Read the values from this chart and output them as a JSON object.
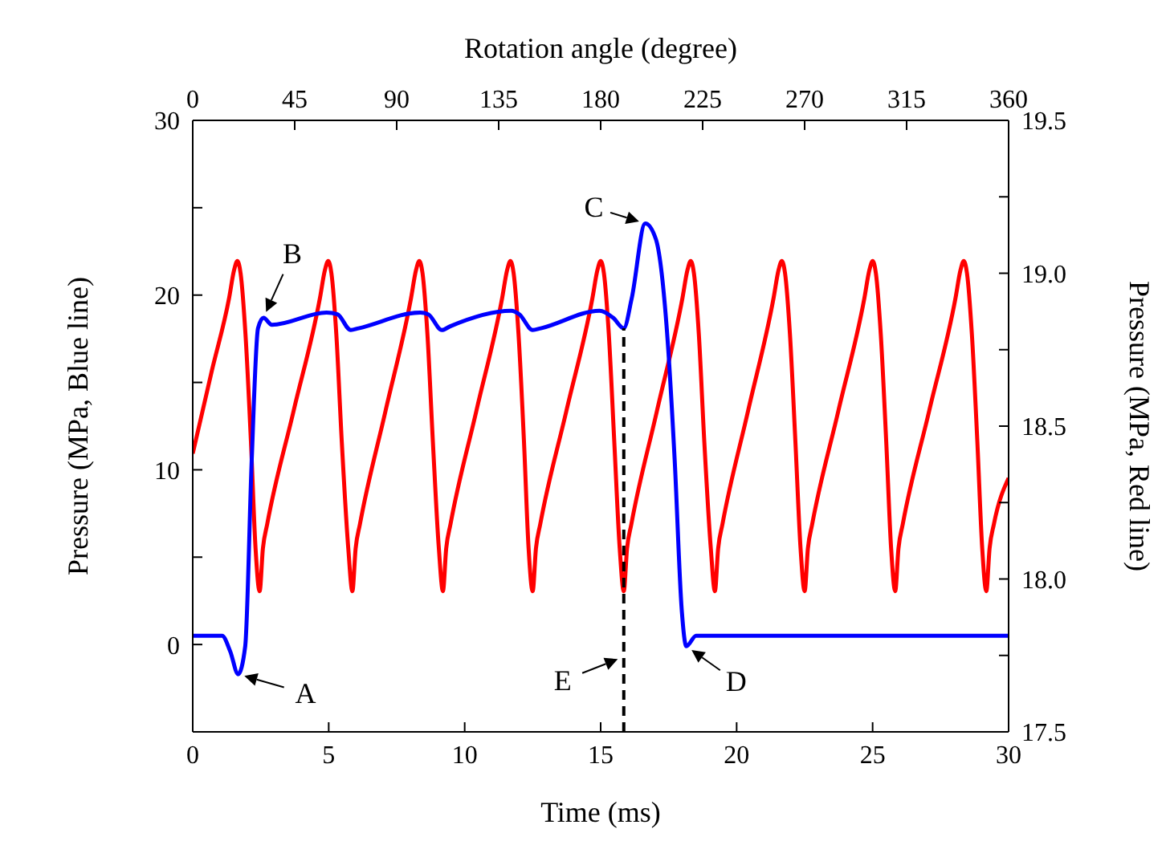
{
  "chart_data": {
    "type": "line",
    "xlabel": "Time (ms)",
    "ylabel": "Pressure (MPa, Blue line)",
    "y2label": "Pressure (MPa, Red line)",
    "x2label": "Rotation angle (degree)",
    "xlim": [
      0,
      30
    ],
    "xticks": [
      0,
      5,
      10,
      15,
      20,
      25,
      30
    ],
    "x2lim": [
      0,
      360
    ],
    "x2ticks": [
      0,
      45,
      90,
      135,
      180,
      225,
      270,
      315,
      360
    ],
    "ylim": [
      -5,
      30
    ],
    "yticks": [
      {
        "value": -5,
        "label": null
      },
      0,
      {
        "value": 5,
        "label": null
      },
      10,
      {
        "value": 15,
        "label": null
      },
      20,
      {
        "value": 25,
        "label": null
      },
      30
    ],
    "y2lim": [
      17.5,
      19.5
    ],
    "y2ticks": [
      17.5,
      {
        "value": 17.75,
        "label": null
      },
      {
        "value": 18,
        "label": "18.0"
      },
      {
        "value": 18.25,
        "label": null
      },
      18.5,
      {
        "value": 18.75,
        "label": null
      },
      {
        "value": 19,
        "label": "19.0"
      },
      {
        "value": 19.25,
        "label": null
      },
      19.5
    ],
    "grid": false,
    "legend": false,
    "marker": "none",
    "series": [
      {
        "color": "#0000ff",
        "x": [
          0,
          1.08,
          1.38,
          1.67,
          1.93,
          2.17,
          2.4,
          2.6,
          2.91,
          4.92,
          5.32,
          5.81,
          6.1,
          8.37,
          8.66,
          9.16,
          9.45,
          11.71,
          12.01,
          12.5,
          12.8,
          14.96,
          15.46,
          15.85,
          16.14,
          16.64,
          17.03,
          17.42,
          17.72,
          17.98,
          18.15,
          18.51,
          30
        ],
        "values": [
          0.5,
          0.5,
          -0.4,
          -1.7,
          -0.1,
          10.6,
          18.1,
          18.7,
          18.3,
          19.0,
          18.9,
          18.0,
          18.1,
          19.0,
          18.9,
          18.0,
          18.2,
          19.1,
          18.9,
          18.0,
          18.1,
          19.1,
          18.7,
          18.1,
          19.8,
          24.1,
          23.2,
          18.3,
          10.6,
          2.0,
          -0.1,
          0.5,
          0.5
        ]
      },
      {
        "color": "#ff0000",
        "axis": "y2",
        "x": [
          0,
          0.7,
          1.34,
          1.52,
          1.64,
          1.76,
          1.94,
          2.14,
          2.31,
          2.46,
          2.58,
          2.74,
          3.71,
          4.68,
          4.86,
          4.98,
          5.1,
          5.28,
          5.48,
          5.72,
          5.87,
          5.99,
          6.15,
          7.09,
          8.03,
          8.21,
          8.33,
          8.45,
          8.63,
          8.83,
          9.05,
          9.2,
          9.32,
          9.48,
          10.43,
          11.38,
          11.56,
          11.68,
          11.8,
          11.98,
          12.18,
          12.35,
          12.5,
          12.62,
          12.78,
          13.74,
          14.7,
          14.88,
          15.0,
          15.12,
          15.3,
          15.5,
          15.7,
          15.85,
          15.97,
          16.13,
          17.07,
          18.01,
          18.19,
          18.31,
          18.43,
          18.61,
          18.81,
          19.05,
          19.2,
          19.32,
          19.48,
          20.42,
          21.36,
          21.54,
          21.66,
          21.78,
          21.96,
          22.16,
          22.35,
          22.5,
          22.62,
          22.78,
          23.74,
          24.7,
          24.88,
          25.0,
          25.12,
          25.3,
          25.5,
          25.68,
          25.83,
          25.95,
          26.11,
          27.08,
          28.05,
          28.23,
          28.35,
          28.47,
          28.65,
          28.85,
          29.03,
          29.18,
          29.3,
          29.46,
          30
        ],
        "values": [
          18.41,
          18.68,
          18.92,
          19.01,
          19.04,
          19.0,
          18.8,
          18.45,
          18.1,
          17.96,
          18.1,
          18.18,
          18.55,
          18.92,
          19.01,
          19.04,
          19.0,
          18.8,
          18.45,
          18.1,
          17.96,
          18.1,
          18.18,
          18.55,
          18.92,
          19.01,
          19.04,
          19.0,
          18.8,
          18.45,
          18.1,
          17.96,
          18.1,
          18.18,
          18.55,
          18.92,
          19.01,
          19.04,
          19.0,
          18.8,
          18.45,
          18.1,
          17.96,
          18.1,
          18.18,
          18.55,
          18.92,
          19.01,
          19.04,
          19.0,
          18.8,
          18.45,
          18.1,
          17.96,
          18.1,
          18.18,
          18.55,
          18.92,
          19.01,
          19.04,
          19.0,
          18.8,
          18.45,
          18.1,
          17.96,
          18.1,
          18.18,
          18.55,
          18.92,
          19.01,
          19.04,
          19.0,
          18.8,
          18.45,
          18.1,
          17.96,
          18.1,
          18.18,
          18.55,
          18.92,
          19.01,
          19.04,
          19.0,
          18.8,
          18.45,
          18.1,
          17.96,
          18.1,
          18.18,
          18.55,
          18.92,
          19.01,
          19.04,
          19.0,
          18.8,
          18.45,
          18.1,
          17.96,
          18.1,
          18.18,
          18.33
        ]
      }
    ],
    "ref_lines": [
      {
        "axis": "x",
        "value": 15.85,
        "line_style": "dashed",
        "color": "#000000"
      }
    ],
    "annotations": [
      {
        "text": "A",
        "x": 1.67,
        "y": -1.7
      },
      {
        "text": "B",
        "x": 2.6,
        "y": 18.7
      },
      {
        "text": "C",
        "x": 16.64,
        "y": 24.1
      },
      {
        "text": "D",
        "x": 18.15,
        "y": -0.1
      },
      {
        "text": "E",
        "x": 15.85,
        "y": -0.7
      }
    ]
  }
}
